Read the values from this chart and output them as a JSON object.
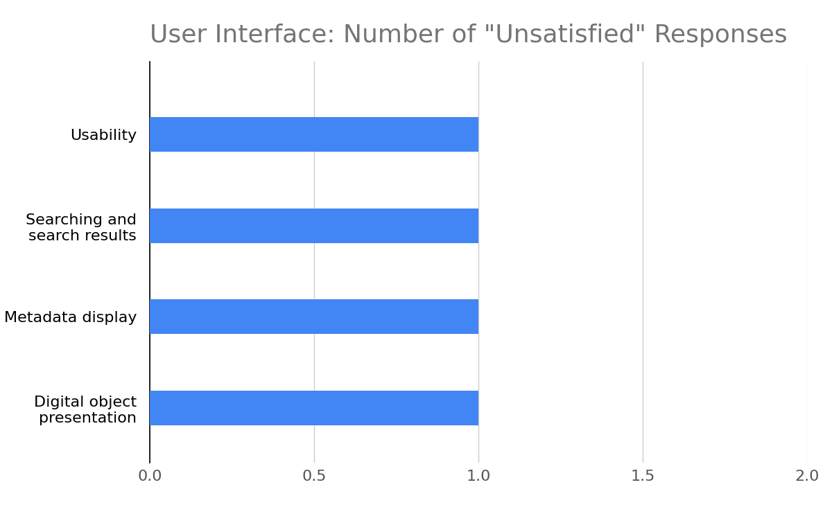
{
  "title": "User Interface: Number of \"Unsatisfied\" Responses",
  "categories": [
    "Digital object\npresentation",
    "Metadata display",
    "Searching and\nsearch results",
    "Usability"
  ],
  "values": [
    1,
    1,
    1,
    1
  ],
  "bar_color": "#4285F4",
  "xlim": [
    0,
    2.0
  ],
  "xticks": [
    0.0,
    0.5,
    1.0,
    1.5,
    2.0
  ],
  "title_fontsize": 26,
  "tick_fontsize": 16,
  "label_fontsize": 16,
  "background_color": "#ffffff",
  "title_color": "#757575",
  "tick_color": "#555555",
  "grid_color": "#cccccc",
  "bar_height": 0.38
}
